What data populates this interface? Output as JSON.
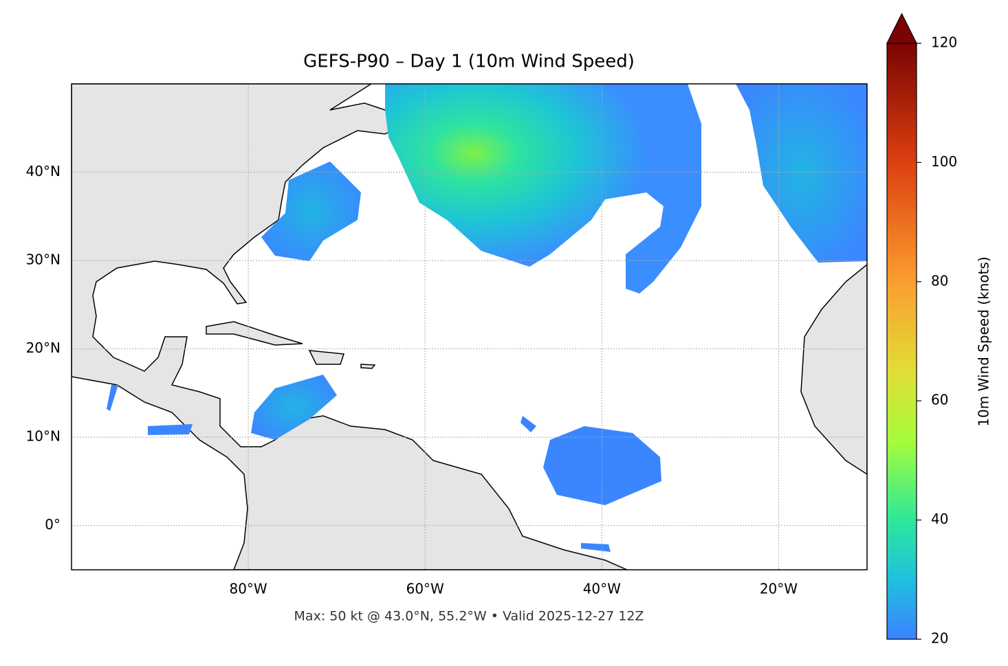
{
  "chart_data": {
    "type": "map",
    "title": "GEFS-P90 – Day 1 (10m Wind Speed)",
    "annotation": "Max: 50 kt @ 43.0°N, 55.2°W • Valid 2025-12-27 12Z",
    "xlim": [
      -100,
      -10
    ],
    "ylim": [
      -5,
      50
    ],
    "xticks": [
      {
        "value": -80,
        "label": "80°W"
      },
      {
        "value": -60,
        "label": "60°W"
      },
      {
        "value": -40,
        "label": "40°W"
      },
      {
        "value": -20,
        "label": "20°W"
      }
    ],
    "yticks": [
      {
        "value": 0,
        "label": "0°"
      },
      {
        "value": 10,
        "label": "10°N"
      },
      {
        "value": 20,
        "label": "20°N"
      },
      {
        "value": 30,
        "label": "30°N"
      },
      {
        "value": 40,
        "label": "40°N"
      }
    ],
    "grid": true,
    "colorbar": {
      "label": "10m Wind Speed (knots)",
      "clim": [
        20,
        120
      ],
      "ticks": [
        20,
        40,
        60,
        80,
        100,
        120
      ],
      "extend": "max"
    }
  }
}
